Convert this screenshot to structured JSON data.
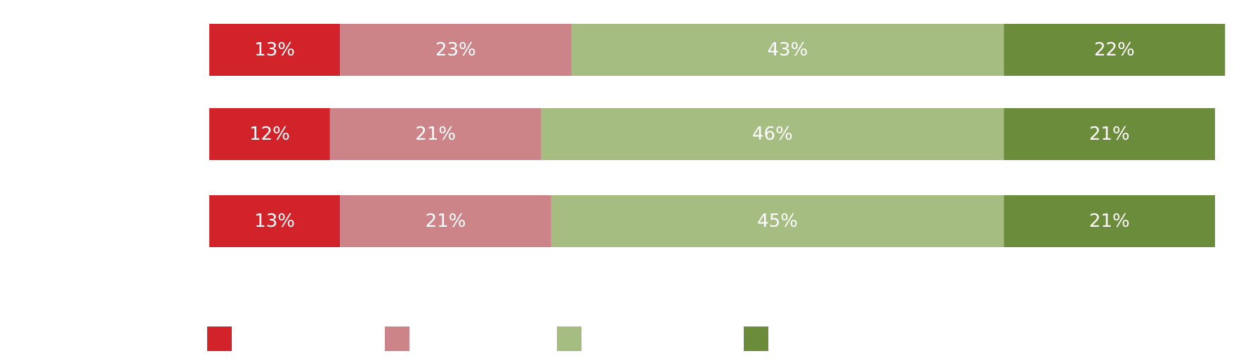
{
  "chart_data": {
    "type": "stacked-bar-horizontal",
    "categories": [
      null,
      null,
      null
    ],
    "xlim": [
      0,
      100
    ],
    "series": [
      {
        "color": "#d2232a",
        "values": [
          13,
          12,
          13
        ],
        "value_labels": [
          "13%",
          "12%",
          "13%"
        ]
      },
      {
        "color": "#cc8488",
        "values": [
          23,
          21,
          21
        ],
        "value_labels": [
          "23%",
          "21%",
          "21%"
        ]
      },
      {
        "color": "#a5bd80",
        "values": [
          43,
          46,
          45
        ],
        "value_labels": [
          "43%",
          "46%",
          "45%"
        ]
      },
      {
        "color": "#6b8c3a",
        "values": [
          22,
          21,
          21
        ],
        "value_labels": [
          "22%",
          "21%",
          "21%"
        ]
      }
    ]
  }
}
